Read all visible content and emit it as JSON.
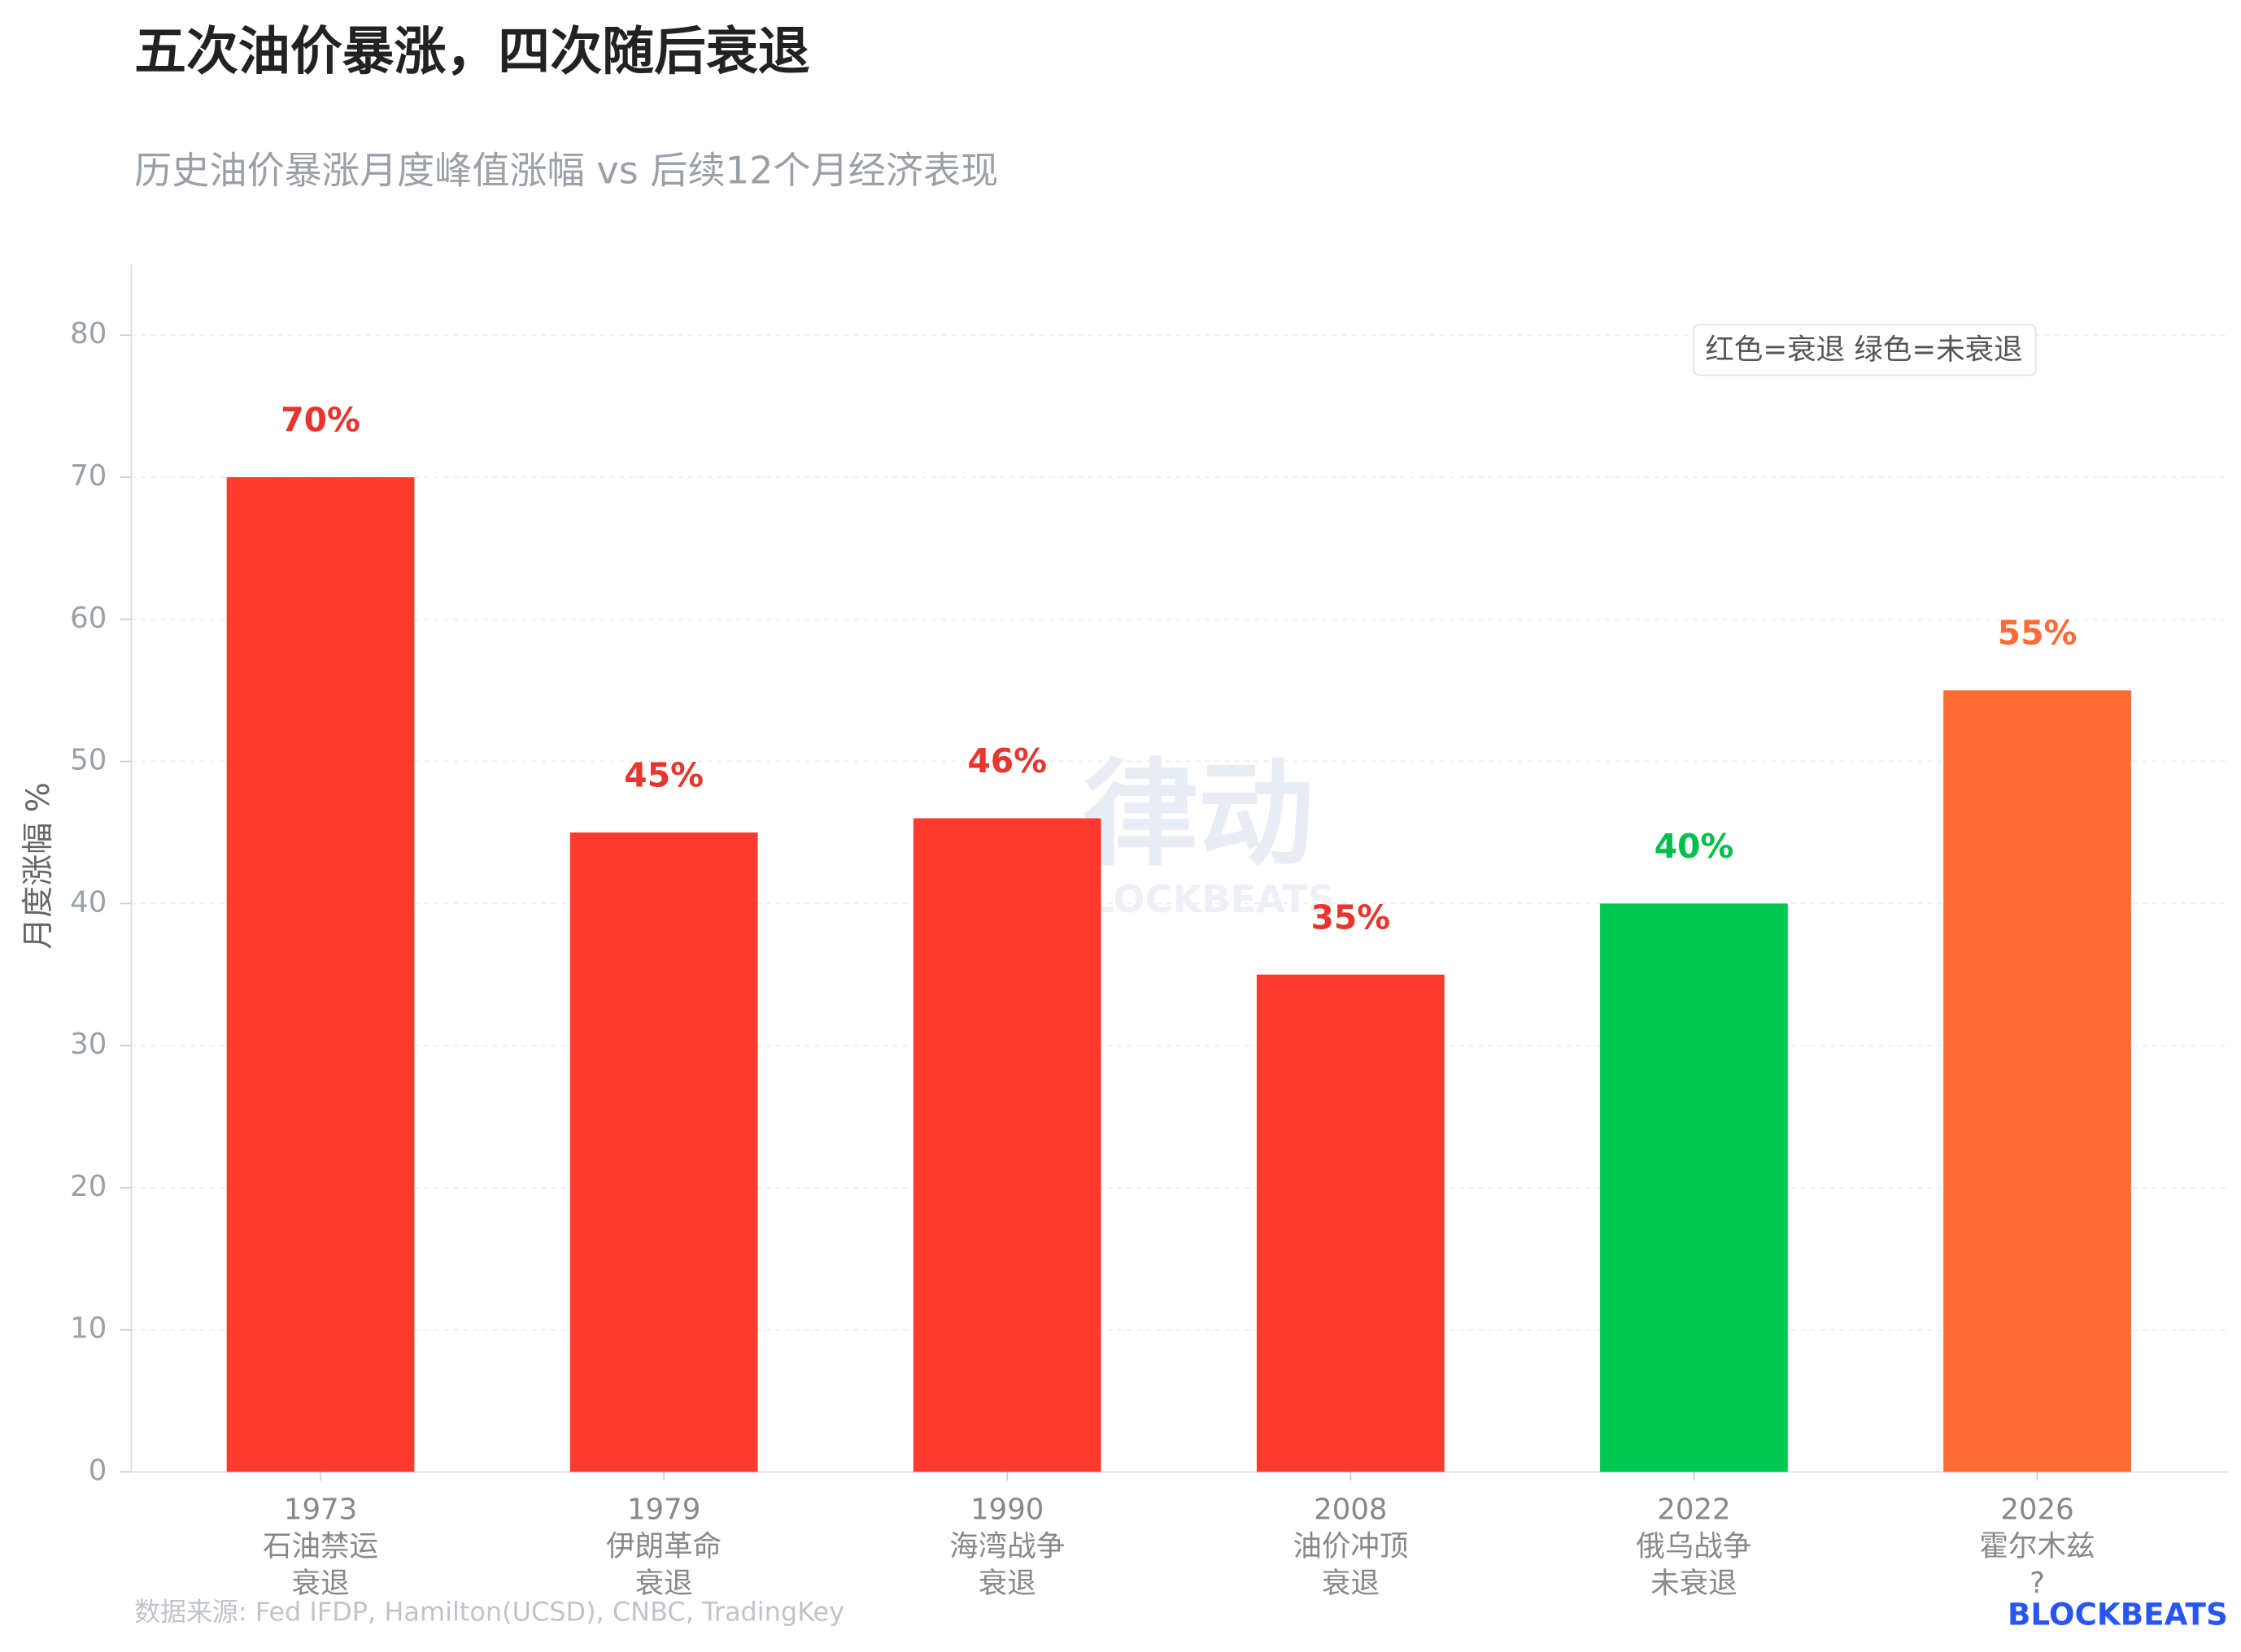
{
  "chart_data": {
    "type": "bar",
    "title": "五次油价暴涨，四次随后衰退",
    "subtitle": "历史油价暴涨月度峰值涨幅 vs 后续12个月经济表现",
    "y_label": "月度涨幅 %",
    "categories": [
      [
        "1973",
        "石油禁运",
        "衰退"
      ],
      [
        "1979",
        "伊朗革命",
        "衰退"
      ],
      [
        "1990",
        "海湾战争",
        "衰退"
      ],
      [
        "2008",
        "油价冲顶",
        "衰退"
      ],
      [
        "2022",
        "俄乌战争",
        "未衰退"
      ],
      [
        "2026",
        "霍尔木兹",
        "?"
      ]
    ],
    "values": [
      70,
      45,
      46,
      35,
      40,
      55
    ],
    "value_labels": [
      "70%",
      "45%",
      "46%",
      "35%",
      "40%",
      "55%"
    ],
    "colors": [
      "#ff3b30",
      "#ff3b30",
      "#ff3b30",
      "#ff3b30",
      "#00c853",
      "#ff6b35"
    ],
    "value_label_colors": [
      "#e8352e",
      "#e8352e",
      "#e8352e",
      "#e8352e",
      "#00c04b",
      "#ff6b35"
    ],
    "ylim": [
      0,
      85
    ],
    "yticks": [
      0,
      10,
      20,
      30,
      40,
      50,
      60,
      70,
      80
    ],
    "grid": true,
    "legend_note": "红色=衰退  绿色=未衰退",
    "source": "数据来源: Fed IFDP, Hamilton(UCSD), CNBC, TradingKey",
    "logo": "BLOCKBEATS",
    "watermark": {
      "cn": "律动",
      "en": "BLOCKBEATS"
    }
  }
}
